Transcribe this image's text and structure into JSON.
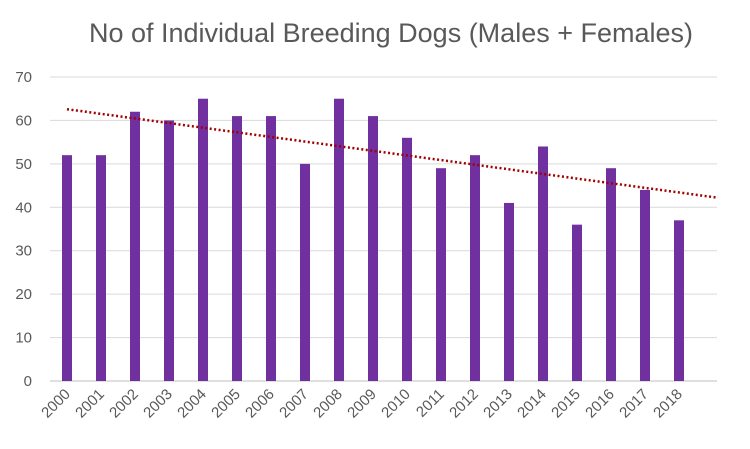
{
  "chart_data": {
    "type": "bar",
    "title": "No of Individual Breeding Dogs (Males + Females)",
    "xlabel": "",
    "ylabel": "",
    "categories": [
      "2000",
      "2001",
      "2002",
      "2003",
      "2004",
      "2005",
      "2006",
      "2007",
      "2008",
      "2009",
      "2010",
      "2011",
      "2012",
      "2013",
      "2014",
      "2015",
      "2016",
      "2017",
      "2018"
    ],
    "series": [
      {
        "values": [
          52,
          52,
          62,
          60,
          65,
          61,
          61,
          50,
          65,
          61,
          56,
          49,
          52,
          41,
          54,
          36,
          49,
          44,
          37
        ]
      }
    ],
    "trendline": {
      "type": "linear",
      "style": "dotted",
      "color": "#a00000"
    },
    "ylim": [
      0,
      70
    ],
    "yticks": [
      0,
      10,
      20,
      30,
      40,
      50,
      60,
      70
    ],
    "grid": true,
    "legend": "none",
    "bar_color": "#7030a0"
  }
}
